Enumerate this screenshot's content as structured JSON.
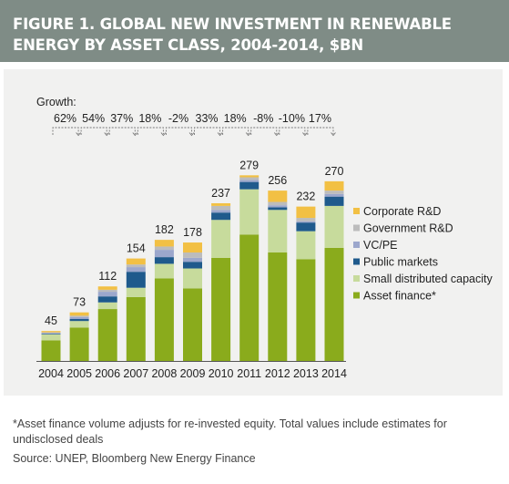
{
  "figure": {
    "title": "FIGURE 1. GLOBAL NEW INVESTMENT IN RENEWABLE ENERGY BY ASSET CLASS, 2004-2014, $BN",
    "footnote": "*Asset finance volume adjusts for re-invested equity.  Total values include estimates for undisclosed deals",
    "source": "Source: UNEP, Bloomberg New Energy Finance"
  },
  "chart_data": {
    "type": "bar",
    "stacked": true,
    "title": "FIGURE 1. GLOBAL NEW INVESTMENT IN RENEWABLE ENERGY BY ASSET CLASS, 2004-2014, $BN",
    "xlabel": "",
    "ylabel": "",
    "ylim": [
      0,
      300
    ],
    "grid": false,
    "legend_position": "right",
    "categories": [
      "2004",
      "2005",
      "2006",
      "2007",
      "2008",
      "2009",
      "2010",
      "2011",
      "2012",
      "2013",
      "2014"
    ],
    "totals": [
      45,
      73,
      112,
      154,
      182,
      178,
      237,
      279,
      256,
      232,
      270
    ],
    "growth_label": "Growth:",
    "growth": [
      "62%",
      "54%",
      "37%",
      "18%",
      "-2%",
      "33%",
      "18%",
      "-8%",
      "-10%",
      "17%"
    ],
    "series": [
      {
        "name": "Asset finance*",
        "color": "#8aab1c",
        "values": [
          31,
          50,
          78,
          96,
          124,
          109,
          155,
          190,
          163,
          153,
          170
        ]
      },
      {
        "name": "Small distributed capacity",
        "color": "#c7db9c",
        "values": [
          9,
          10,
          10,
          14,
          22,
          30,
          57,
          68,
          64,
          42,
          63
        ]
      },
      {
        "name": "Public markets",
        "color": "#1f5a8c",
        "values": [
          1,
          3,
          9,
          24,
          10,
          10,
          11,
          11,
          4,
          13,
          14
        ]
      },
      {
        "name": "VC/PE",
        "color": "#9ca7cc",
        "values": [
          1,
          3,
          7,
          7,
          11,
          6,
          4,
          3,
          3,
          2,
          4
        ]
      },
      {
        "name": "Government R&D",
        "color": "#bcbcbc",
        "values": [
          1,
          2,
          3,
          4,
          5,
          8,
          6,
          4,
          5,
          5,
          5
        ]
      },
      {
        "name": "Corporate R&D",
        "color": "#f2c044",
        "values": [
          2,
          5,
          5,
          9,
          10,
          15,
          4,
          3,
          17,
          17,
          14
        ]
      }
    ]
  }
}
